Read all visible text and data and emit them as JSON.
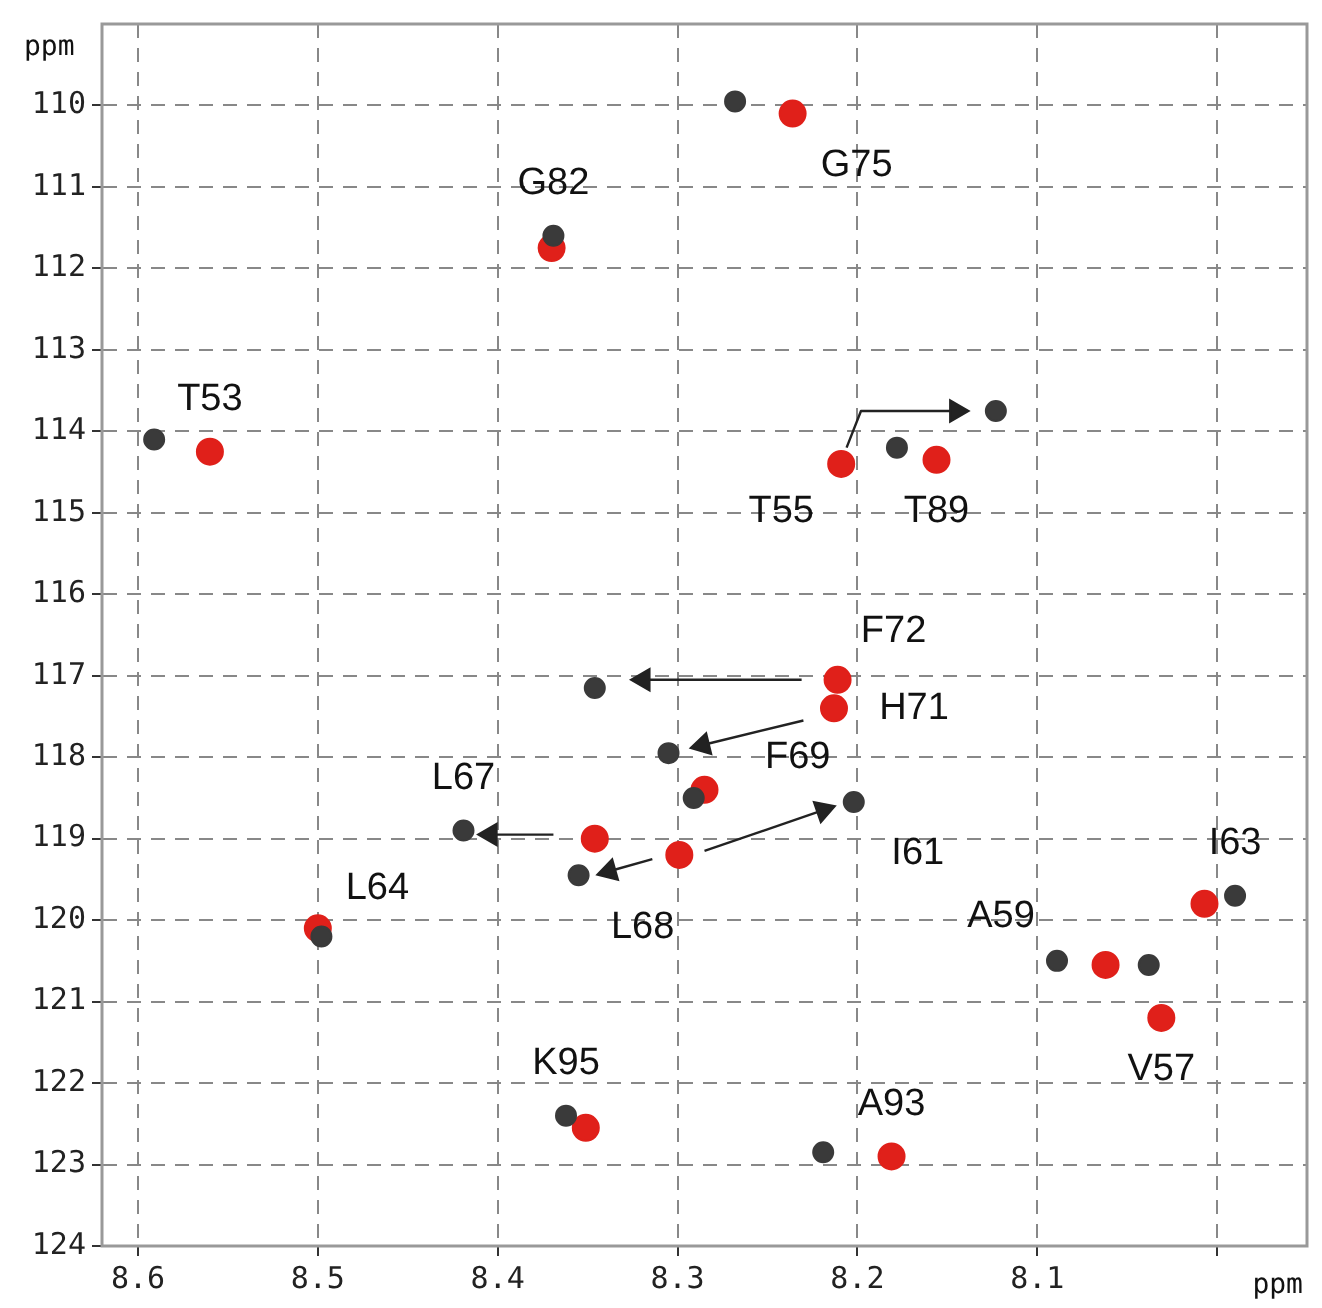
{
  "chart_data": {
    "type": "scatter",
    "xlabel": "ppm",
    "ylabel": "ppm",
    "xlim": [
      8.62,
      7.95
    ],
    "ylim": [
      124,
      109
    ],
    "xticks": [
      8.6,
      8.5,
      8.4,
      8.3,
      8.2,
      8.1,
      {
        "value": 8.0,
        "label": null
      }
    ],
    "yticks": [
      110,
      111,
      112,
      113,
      114,
      115,
      116,
      117,
      118,
      119,
      120,
      121,
      122,
      123,
      124
    ],
    "grid": true,
    "legend": false,
    "series": [
      {
        "marker": "circle",
        "color": "#e0201a",
        "x": [
          8.56,
          8.37,
          8.236,
          8.209,
          8.156,
          8.213,
          8.211,
          8.285,
          8.299,
          8.346,
          8.5,
          8.351,
          8.181,
          8.062,
          8.031,
          8.007
        ],
        "values": [
          114.25,
          111.75,
          110.1,
          114.4,
          114.35,
          117.4,
          117.05,
          118.4,
          119.2,
          119.0,
          120.1,
          122.55,
          122.9,
          120.55,
          121.2,
          119.8
        ]
      },
      {
        "marker": "circle",
        "color": "#3a3a3a",
        "x": [
          8.591,
          8.369,
          8.268,
          8.178,
          8.123,
          8.346,
          8.305,
          8.202,
          8.291,
          8.419,
          8.355,
          8.498,
          8.362,
          8.219,
          8.089,
          8.038,
          7.99
        ],
        "values": [
          114.1,
          111.6,
          109.95,
          114.2,
          113.75,
          117.15,
          117.95,
          118.55,
          118.5,
          118.9,
          119.45,
          120.2,
          122.4,
          122.85,
          120.5,
          120.55,
          119.7
        ]
      },
      {
        "type": "line",
        "color": "#222222",
        "x": [
          8.206,
          8.198,
          8.145
        ],
        "values": [
          114.2,
          113.75,
          113.75
        ]
      },
      {
        "type": "line",
        "color": "#222222",
        "x": [
          8.231,
          8.319
        ],
        "values": [
          117.05,
          117.05
        ]
      },
      {
        "type": "line",
        "color": "#222222",
        "x": [
          8.23,
          8.286
        ],
        "values": [
          117.55,
          117.85
        ]
      },
      {
        "type": "line",
        "color": "#222222",
        "x": [
          8.285,
          8.219
        ],
        "values": [
          119.15,
          118.65
        ]
      },
      {
        "type": "line",
        "color": "#222222",
        "x": [
          8.369,
          8.404
        ],
        "values": [
          118.95,
          118.95
        ]
      },
      {
        "type": "line",
        "color": "#222222",
        "x": [
          8.314,
          8.338
        ],
        "values": [
          119.25,
          119.4
        ]
      }
    ],
    "annotations": [
      {
        "text": "T53",
        "x": 8.56,
        "y": 114.25
      },
      {
        "text": "G82",
        "x": 8.369,
        "y": 111.6
      },
      {
        "text": "G75",
        "x": 8.236,
        "y": 110.1
      },
      {
        "text": "T55",
        "x": 8.209,
        "y": 114.4
      },
      {
        "text": "T89",
        "x": 8.156,
        "y": 114.35
      },
      {
        "text": "F72",
        "x": 8.211,
        "y": 117.05
      },
      {
        "text": "H71",
        "x": 8.213,
        "y": 117.4
      },
      {
        "text": "F69",
        "x": 8.202,
        "y": 118.55
      },
      {
        "text": "I61",
        "x": 8.202,
        "y": 118.55
      },
      {
        "text": "I63",
        "x": 7.99,
        "y": 119.7
      },
      {
        "text": "A59",
        "x": 8.089,
        "y": 120.5
      },
      {
        "text": "V57",
        "x": 8.031,
        "y": 121.2
      },
      {
        "text": "A93",
        "x": 8.181,
        "y": 122.9
      },
      {
        "text": "K95",
        "x": 8.362,
        "y": 122.4
      },
      {
        "text": "L68",
        "x": 8.355,
        "y": 119.45
      },
      {
        "text": "L64",
        "x": 8.498,
        "y": 120.2
      },
      {
        "text": "L67",
        "x": 8.419,
        "y": 118.9
      }
    ]
  }
}
